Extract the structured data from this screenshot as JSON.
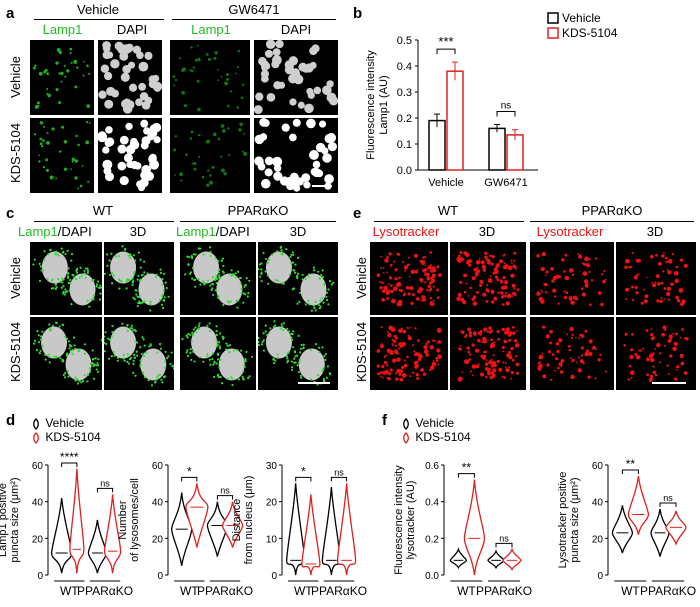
{
  "panel_letters": {
    "a": "a",
    "b": "b",
    "c": "c",
    "d": "d",
    "e": "e",
    "f": "f"
  },
  "panel_a": {
    "groups": [
      "Vehicle",
      "GW6471"
    ],
    "stains": [
      "Lamp1",
      "DAPI"
    ],
    "rows": [
      "Vehicle",
      "KDS-5104"
    ],
    "colors": {
      "lamp1": "#22cc22",
      "dapi": "#e8e8e8"
    }
  },
  "panel_c": {
    "groups": [
      "WT",
      "PPARαKO"
    ],
    "col_lamp1": "Lamp1",
    "col_dapi": "/DAPI",
    "col_3d": "3D",
    "rows": [
      "Vehicle",
      "KDS-5104"
    ]
  },
  "panel_e": {
    "groups": [
      "WT",
      "PPARαKO"
    ],
    "col_lyso": "Lysotracker",
    "col_3d": "3D",
    "rows": [
      "Vehicle",
      "KDS-5104"
    ],
    "color": "#ee1111"
  },
  "legend": {
    "vehicle": "Vehicle",
    "kds": "KDS-5104",
    "vehicle_color": "#000000",
    "kds_color": "#e02020"
  },
  "chart_data": [
    {
      "id": "b",
      "type": "bar",
      "categories": [
        "Vehicle",
        "GW6471"
      ],
      "series": [
        {
          "name": "Vehicle",
          "values": [
            0.19,
            0.16
          ],
          "errors": [
            0.025,
            0.015
          ]
        },
        {
          "name": "KDS-5104",
          "values": [
            0.38,
            0.135
          ],
          "errors": [
            0.035,
            0.02
          ]
        }
      ],
      "ylabel": "Fluorescence intensity\nLamp1 (AU)",
      "ylim": [
        0,
        0.5
      ],
      "yticks": [
        "0.0",
        "0.1",
        "0.2",
        "0.3",
        "0.4",
        "0.5"
      ],
      "significance": [
        "***",
        "ns"
      ]
    },
    {
      "id": "d1",
      "type": "violin",
      "categories": [
        "WT",
        "PPARαKO"
      ],
      "ylabel": "Lamp1 positive\npuncta size (μm²)",
      "ylim": [
        0,
        60
      ],
      "yticks": [
        "0",
        "20",
        "40",
        "60"
      ],
      "medians": {
        "Vehicle": [
          12,
          12
        ],
        "KDS-5104": [
          14,
          13
        ]
      },
      "maxima": {
        "Vehicle": [
          42,
          30
        ],
        "KDS-5104": [
          58,
          44
        ]
      },
      "significance": [
        "****",
        "ns"
      ]
    },
    {
      "id": "d2",
      "type": "violin",
      "categories": [
        "WT",
        "PPARαKO"
      ],
      "ylabel": "Number\nof lysosomes/cell",
      "ylim": [
        0,
        60
      ],
      "yticks": [
        "0",
        "20",
        "40",
        "60"
      ],
      "medians": {
        "Vehicle": [
          25,
          27
        ],
        "KDS-5104": [
          37,
          27
        ]
      },
      "significance": [
        "*",
        "ns"
      ]
    },
    {
      "id": "d3",
      "type": "violin",
      "categories": [
        "WT",
        "PPARαKO"
      ],
      "ylabel": "Distance\nfrom nucleus (μm)",
      "ylim": [
        0,
        30
      ],
      "yticks": [
        "0",
        "10",
        "20",
        "30"
      ],
      "significance": [
        "*",
        "ns"
      ]
    },
    {
      "id": "f1",
      "type": "violin",
      "categories": [
        "WT",
        "PPARαKO"
      ],
      "ylabel": "Fluorescence intensity\nlysotracker (AU)",
      "ylim": [
        0,
        0.6
      ],
      "yticks": [
        "0.0",
        "0.2",
        "0.4",
        "0.6"
      ],
      "significance": [
        "**",
        "ns"
      ]
    },
    {
      "id": "f2",
      "type": "violin",
      "categories": [
        "WT",
        "PPARαKO"
      ],
      "ylabel": "Lysotracker positive\npuncta size (μm²)",
      "ylim": [
        0,
        60
      ],
      "yticks": [
        "0",
        "20",
        "40",
        "60"
      ],
      "significance": [
        "**",
        "ns"
      ]
    }
  ]
}
